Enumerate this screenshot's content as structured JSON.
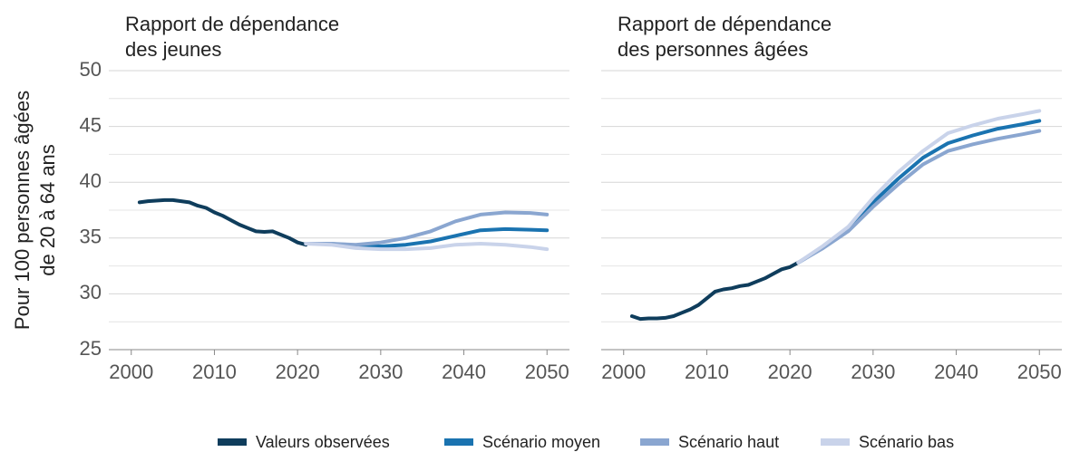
{
  "chart_data": [
    {
      "type": "line",
      "title": [
        "Rapport de dépendance",
        "des jeunes"
      ],
      "ylabel": [
        "Pour 100 personnes âgées",
        "de 20 à 64 ans"
      ],
      "xlim": [
        1997.3,
        2052.7
      ],
      "xticks": [
        2000,
        2010,
        2020,
        2030,
        2040,
        2050
      ],
      "ylim": [
        25,
        50
      ],
      "yticks": [
        25,
        30,
        35,
        40,
        45,
        50
      ],
      "minor_yticks": [
        27.5,
        32.5,
        37.5,
        42.5,
        47.5
      ],
      "grid": true,
      "series": [
        {
          "name": "Valeurs observées",
          "color": "#0f3d5c",
          "x": [
            2001,
            2002,
            2003,
            2004,
            2005,
            2006,
            2007,
            2008,
            2009,
            2010,
            2011,
            2012,
            2013,
            2014,
            2015,
            2016,
            2017,
            2018,
            2019,
            2020,
            2021
          ],
          "values": [
            38.2,
            38.3,
            38.35,
            38.4,
            38.4,
            38.3,
            38.2,
            37.9,
            37.7,
            37.3,
            37.0,
            36.6,
            36.2,
            35.9,
            35.6,
            35.55,
            35.6,
            35.3,
            35.0,
            34.6,
            34.4
          ]
        },
        {
          "name": "Scénario moyen",
          "color": "#1a73b0",
          "x": [
            2021,
            2024,
            2027,
            2030,
            2033,
            2036,
            2039,
            2042,
            2045,
            2048,
            2050
          ],
          "values": [
            34.5,
            34.5,
            34.3,
            34.25,
            34.4,
            34.7,
            35.2,
            35.7,
            35.8,
            35.75,
            35.7
          ]
        },
        {
          "name": "Scénario haut",
          "color": "#8aa6d0",
          "x": [
            2021,
            2024,
            2027,
            2030,
            2033,
            2036,
            2039,
            2042,
            2045,
            2048,
            2050
          ],
          "values": [
            34.5,
            34.5,
            34.4,
            34.6,
            35.0,
            35.6,
            36.5,
            37.1,
            37.3,
            37.25,
            37.1
          ]
        },
        {
          "name": "Scénario bas",
          "color": "#c9d3ea",
          "x": [
            2021,
            2024,
            2027,
            2030,
            2033,
            2036,
            2039,
            2042,
            2045,
            2048,
            2050
          ],
          "values": [
            34.5,
            34.4,
            34.1,
            34.0,
            34.0,
            34.1,
            34.4,
            34.5,
            34.4,
            34.2,
            34.0
          ]
        }
      ]
    },
    {
      "type": "line",
      "title": [
        "Rapport de dépendance",
        "des personnes âgées"
      ],
      "xlim": [
        1997.3,
        2052.7
      ],
      "xticks": [
        2000,
        2010,
        2020,
        2030,
        2040,
        2050
      ],
      "ylim": [
        25,
        50
      ],
      "yticks": [
        25,
        30,
        35,
        40,
        45,
        50
      ],
      "minor_yticks": [
        27.5,
        32.5,
        37.5,
        42.5,
        47.5
      ],
      "grid": true,
      "series": [
        {
          "name": "Valeurs observées",
          "color": "#0f3d5c",
          "x": [
            2001,
            2002,
            2003,
            2004,
            2005,
            2006,
            2007,
            2008,
            2009,
            2010,
            2011,
            2012,
            2013,
            2014,
            2015,
            2016,
            2017,
            2018,
            2019,
            2020,
            2021
          ],
          "values": [
            28.0,
            27.75,
            27.8,
            27.8,
            27.85,
            28.0,
            28.3,
            28.6,
            29.0,
            29.6,
            30.2,
            30.4,
            30.5,
            30.7,
            30.8,
            31.1,
            31.4,
            31.8,
            32.2,
            32.4,
            32.8
          ]
        },
        {
          "name": "Scénario moyen",
          "color": "#1a73b0",
          "x": [
            2021,
            2024,
            2027,
            2030,
            2033,
            2036,
            2039,
            2042,
            2045,
            2048,
            2050
          ],
          "values": [
            32.8,
            34.2,
            35.8,
            38.2,
            40.3,
            42.2,
            43.5,
            44.2,
            44.8,
            45.2,
            45.5
          ]
        },
        {
          "name": "Scénario haut",
          "color": "#8aa6d0",
          "x": [
            2021,
            2024,
            2027,
            2030,
            2033,
            2036,
            2039,
            2042,
            2045,
            2048,
            2050
          ],
          "values": [
            32.8,
            34.1,
            35.6,
            37.8,
            39.8,
            41.6,
            42.8,
            43.4,
            43.9,
            44.3,
            44.6
          ]
        },
        {
          "name": "Scénario bas",
          "color": "#c9d3ea",
          "x": [
            2021,
            2024,
            2027,
            2030,
            2033,
            2036,
            2039,
            2042,
            2045,
            2048,
            2050
          ],
          "values": [
            32.8,
            34.3,
            36.0,
            38.6,
            40.9,
            42.8,
            44.4,
            45.1,
            45.7,
            46.1,
            46.4
          ]
        }
      ]
    }
  ]
}
